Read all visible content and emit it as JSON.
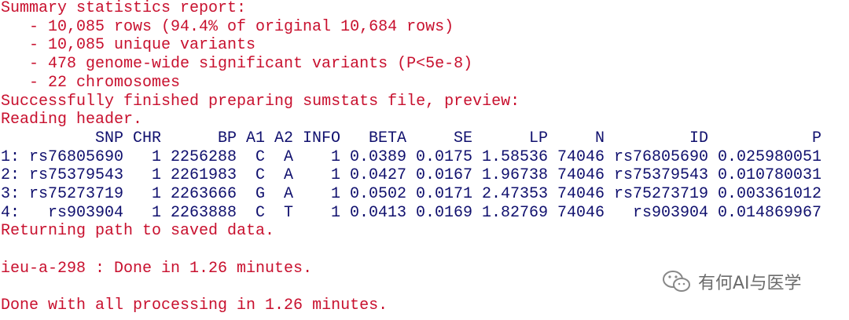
{
  "report": {
    "title": "Summary statistics report:",
    "items": [
      "- 10,085 rows (94.4% of original 10,684 rows)",
      "- 10,085 unique variants",
      "- 478 genome-wide significant variants (P<5e-8)",
      "- 22 chromosomes"
    ]
  },
  "messages": [
    "Successfully finished preparing sumstats file, preview:",
    "Reading header."
  ],
  "table": {
    "header": [
      "SNP",
      "CHR",
      "BP",
      "A1",
      "A2",
      "INFO",
      "BETA",
      "SE",
      "LP",
      "N",
      "ID",
      "P"
    ],
    "rows": [
      {
        "label": "1:",
        "cells": [
          "rs76805690",
          "1",
          "2256288",
          "C",
          "A",
          "1",
          "0.0389",
          "0.0175",
          "1.58536",
          "74046",
          "rs76805690",
          "0.025980051"
        ]
      },
      {
        "label": "2:",
        "cells": [
          "rs75379543",
          "1",
          "2261983",
          "C",
          "A",
          "1",
          "0.0427",
          "0.0167",
          "1.96738",
          "74046",
          "rs75379543",
          "0.010780031"
        ]
      },
      {
        "label": "3:",
        "cells": [
          "rs75273719",
          "1",
          "2263666",
          "G",
          "A",
          "1",
          "0.0502",
          "0.0171",
          "2.47353",
          "74046",
          "rs75273719",
          "0.003361012"
        ]
      },
      {
        "label": "4:",
        "cells": [
          "rs903904",
          "1",
          "2263888",
          "C",
          "T",
          "1",
          "0.0413",
          "0.0169",
          "1.82769",
          "74046",
          "rs903904",
          "0.014869967"
        ]
      }
    ]
  },
  "returning": "Returning path to saved data.",
  "status": "ieu-a-298 : Done in 1.26 minutes.",
  "final": "Done with all processing in 1.26 minutes.",
  "watermark": "有何AI与医学"
}
